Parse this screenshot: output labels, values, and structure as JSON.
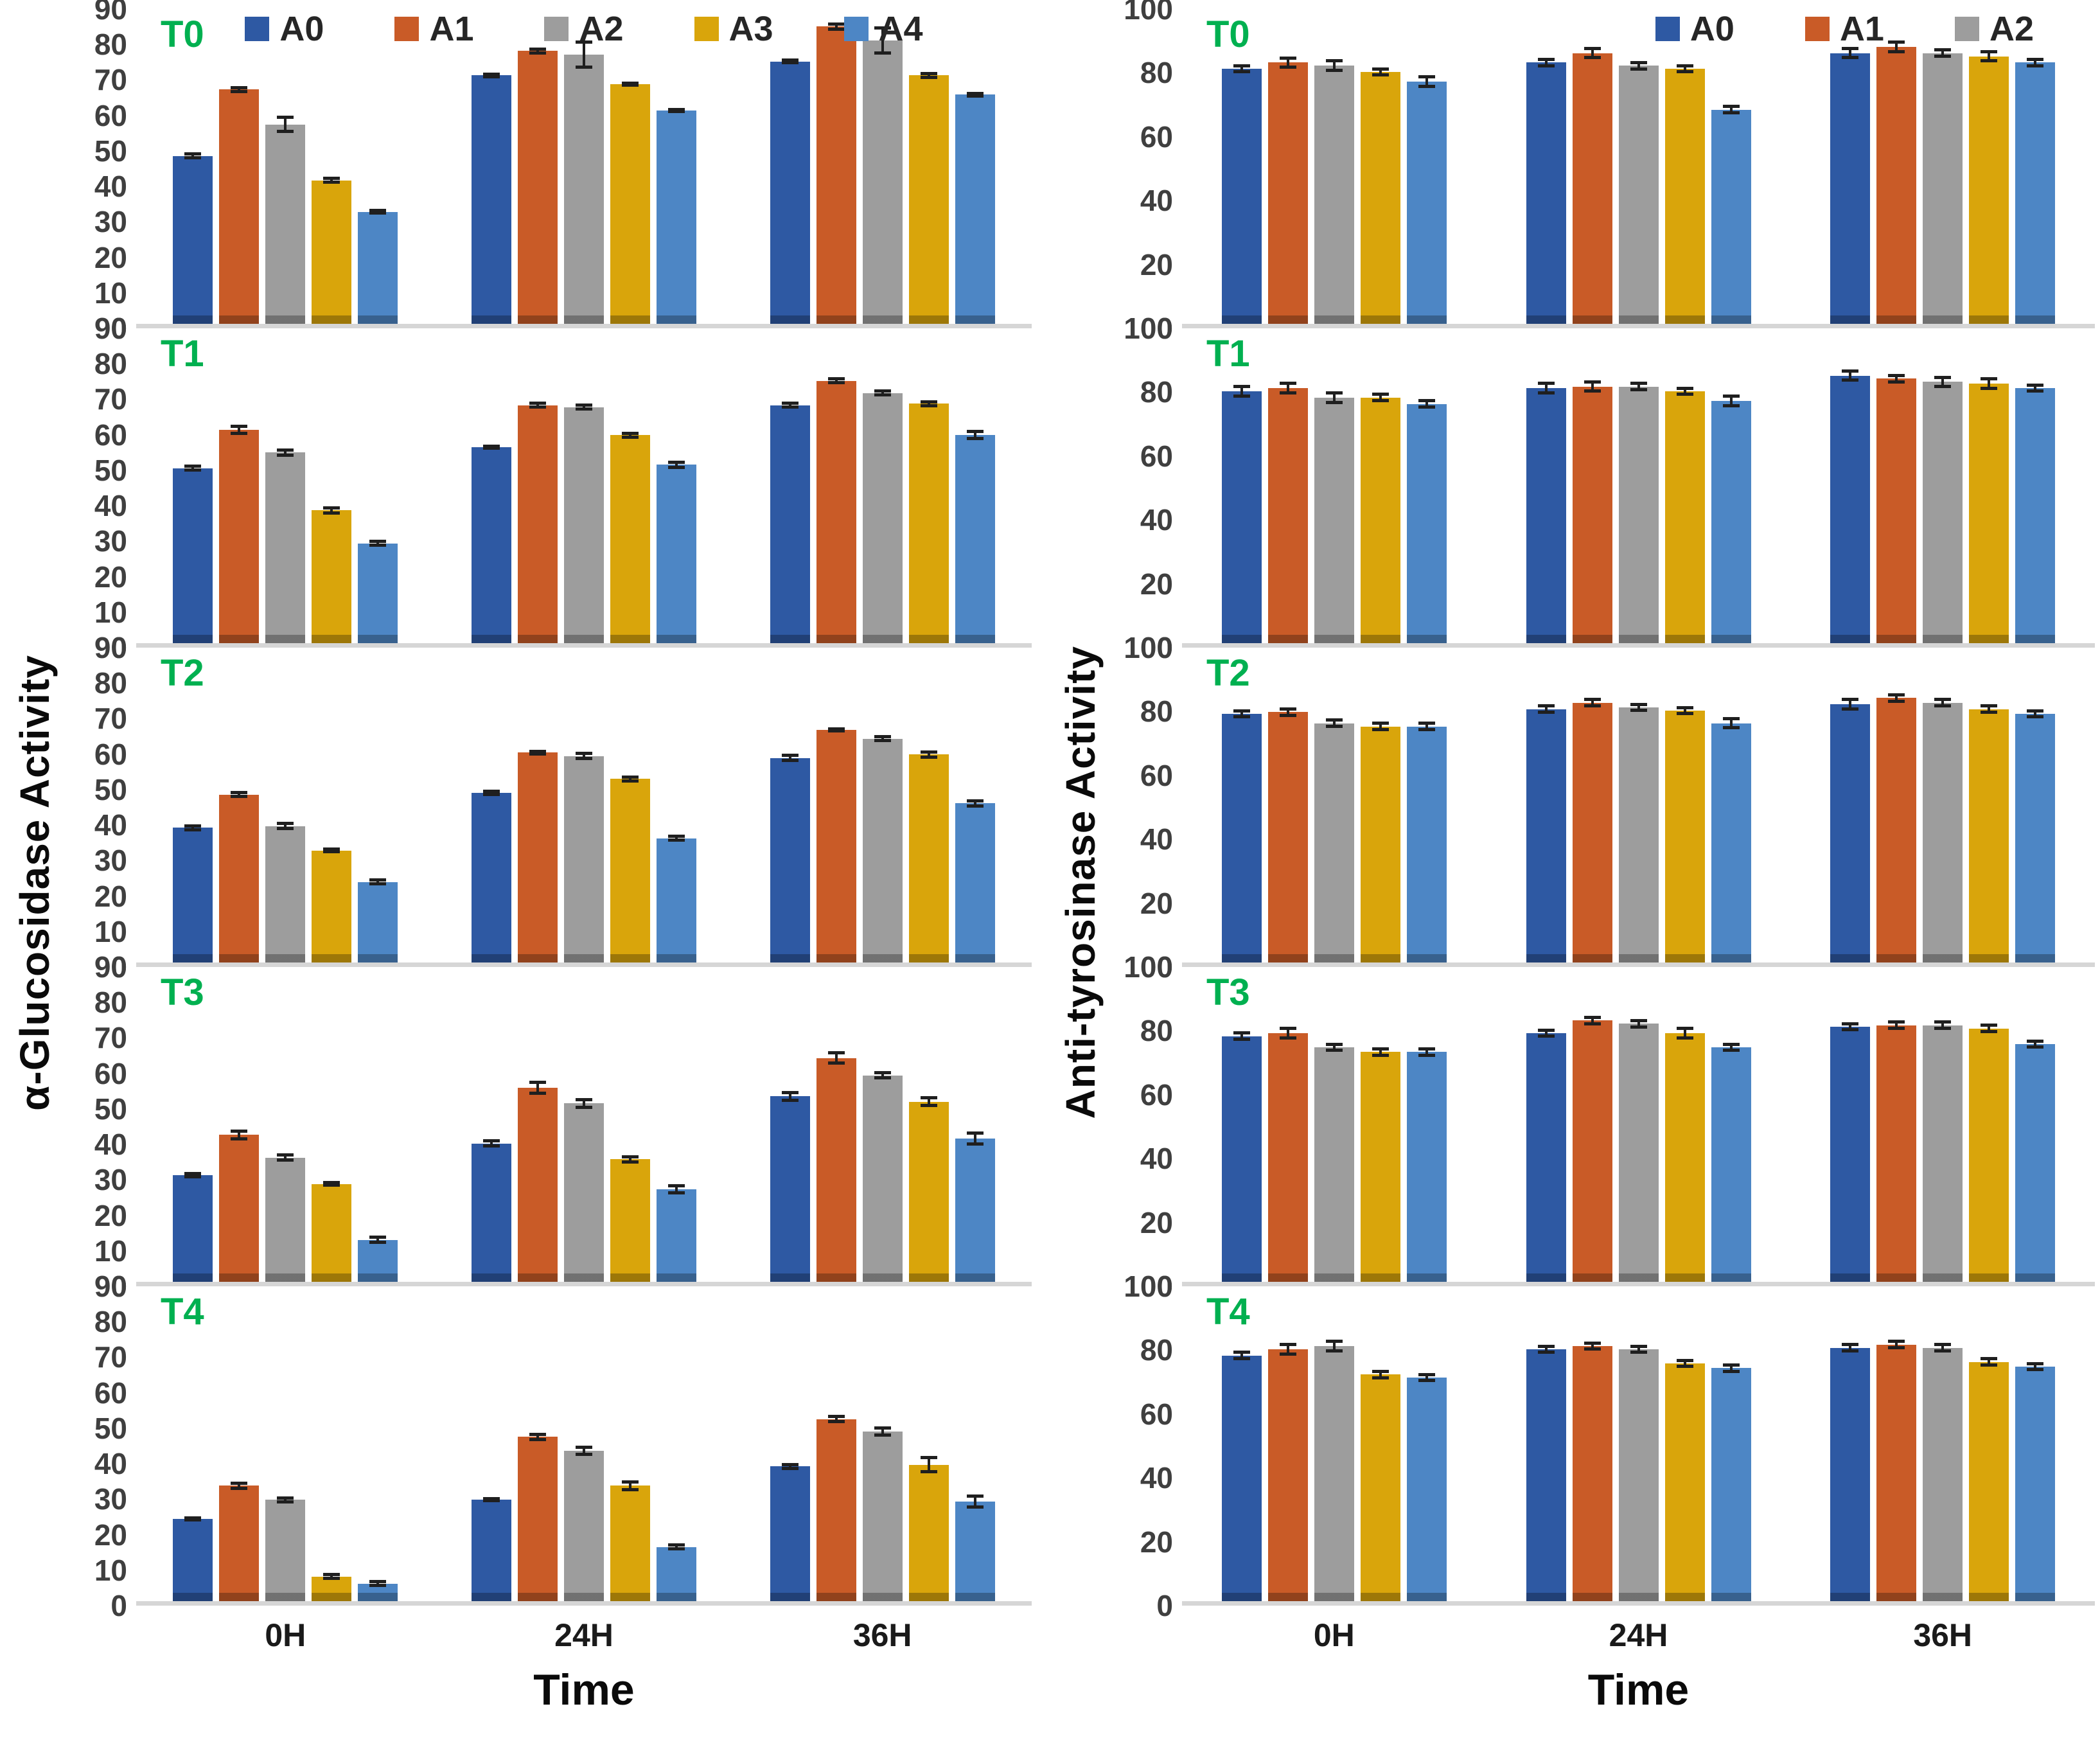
{
  "chart_data": {
    "type": "bar",
    "layout": "two columns of five stacked grouped-bar panels with error bars, shared x axis",
    "x_categories": [
      "0H",
      "24H",
      "36H"
    ],
    "series_labels": [
      "A0",
      "A1",
      "A2",
      "A3",
      "A4"
    ],
    "palette": {
      "A0": "#2E59A3",
      "A1": "#C95B27",
      "A2": "#9D9D9D",
      "A3": "#D9A50B",
      "A4": "#4D86C5"
    },
    "panel_label_color": "#00B050",
    "error_bar_color": "#1F1F1F",
    "baseline_color": "#D6D6D6",
    "grid": "off",
    "charts": [
      {
        "id": "alpha-glucosidase",
        "ylabel": "α-Glucosidase Activity",
        "xlabel": "Time",
        "ylim": [
          0,
          90
        ],
        "yticks": [
          90,
          80,
          70,
          60,
          50,
          40,
          30,
          20,
          10,
          0
        ],
        "legend": [
          "A0",
          "A1",
          "A2",
          "A3",
          "A4"
        ],
        "legend_align": "center",
        "panels": [
          {
            "label": "T0",
            "groups": [
              {
                "x": "0H",
                "values": [
                  48,
                  67,
                  57,
                  41,
                  32
                ],
                "errors": [
                  1,
                  1,
                  2.5,
                  1,
                  0.8
                ]
              },
              {
                "x": "24H",
                "values": [
                  71,
                  78,
                  77,
                  68.5,
                  61
                ],
                "errors": [
                  0.8,
                  1,
                  4,
                  0.8,
                  0.8
                ]
              },
              {
                "x": "36H",
                "values": [
                  75,
                  85,
                  81,
                  71,
                  65.5
                ],
                "errors": [
                  0.8,
                  1.2,
                  4,
                  1,
                  0.8
                ]
              }
            ]
          },
          {
            "label": "T1",
            "groups": [
              {
                "x": "0H",
                "values": [
                  50,
                  61,
                  54.5,
                  38,
                  28.5
                ],
                "errors": [
                  1,
                  1.5,
                  1.2,
                  1.2,
                  1
                ]
              },
              {
                "x": "24H",
                "values": [
                  56,
                  68,
                  67.5,
                  59.5,
                  51
                ],
                "errors": [
                  0.8,
                  1,
                  1,
                  1,
                  1.2
                ]
              },
              {
                "x": "36H",
                "values": [
                  68,
                  75,
                  71.5,
                  68.5,
                  59.5
                ],
                "errors": [
                  1,
                  1,
                  1,
                  1,
                  1.5
                ]
              }
            ]
          },
          {
            "label": "T2",
            "groups": [
              {
                "x": "0H",
                "values": [
                  38.5,
                  48,
                  39,
                  32,
                  23
                ],
                "errors": [
                  1,
                  1,
                  1.2,
                  0.8,
                  1
                ]
              },
              {
                "x": "24H",
                "values": [
                  48.5,
                  60,
                  59,
                  52.5,
                  35.5
                ],
                "errors": [
                  1,
                  0.8,
                  1.2,
                  1,
                  1
                ]
              },
              {
                "x": "36H",
                "values": [
                  58.5,
                  66.5,
                  64,
                  59.5,
                  45.5
                ],
                "errors": [
                  1.2,
                  0.8,
                  1,
                  1.2,
                  1.2
                ]
              }
            ]
          },
          {
            "label": "T3",
            "groups": [
              {
                "x": "0H",
                "values": [
                  30.5,
                  42,
                  35.5,
                  28,
                  12
                ],
                "errors": [
                  1,
                  1.5,
                  1.2,
                  0.8,
                  1.2
                ]
              },
              {
                "x": "24H",
                "values": [
                  39.5,
                  55.5,
                  51,
                  35,
                  26.5
                ],
                "errors": [
                  1.2,
                  2,
                  1.5,
                  1.2,
                  1.5
                ]
              },
              {
                "x": "36H",
                "values": [
                  53,
                  64,
                  59,
                  51.5,
                  41
                ],
                "errors": [
                  1.5,
                  2,
                  1.2,
                  1.5,
                  2
                ]
              }
            ]
          },
          {
            "label": "T4",
            "groups": [
              {
                "x": "0H",
                "values": [
                  23.5,
                  33,
                  29,
                  7,
                  5
                ],
                "errors": [
                  0.8,
                  1.2,
                  1,
                  1,
                  1
                ]
              },
              {
                "x": "24H",
                "values": [
                  29,
                  47,
                  43,
                  33,
                  15.5
                ],
                "errors": [
                  0.8,
                  1.2,
                  1.5,
                  1.5,
                  1
                ]
              },
              {
                "x": "36H",
                "values": [
                  38.5,
                  52,
                  48.5,
                  39,
                  28.5
                ],
                "errors": [
                  1,
                  1.2,
                  1.5,
                  2.5,
                  2
                ]
              }
            ]
          }
        ]
      },
      {
        "id": "anti-tyrosinase",
        "ylabel": "Anti-tyrosinase Activity",
        "xlabel": "Time",
        "ylim": [
          0,
          100
        ],
        "yticks": [
          100,
          80,
          60,
          40,
          20,
          0
        ],
        "legend": [
          "A0",
          "A1",
          "A2"
        ],
        "legend_align": "right",
        "panels": [
          {
            "label": "T0",
            "groups": [
              {
                "x": "0H",
                "values": [
                  81,
                  83,
                  82,
                  80,
                  77
                ],
                "errors": [
                  1.5,
                  2,
                  2,
                  1.5,
                  2
                ]
              },
              {
                "x": "24H",
                "values": [
                  83,
                  86,
                  82,
                  81,
                  68
                ],
                "errors": [
                  1.5,
                  2,
                  1.5,
                  1.5,
                  1.5
                ]
              },
              {
                "x": "36H",
                "values": [
                  86,
                  88,
                  86,
                  85,
                  83
                ],
                "errors": [
                  2,
                  2,
                  1.5,
                  2,
                  1.5
                ]
              }
            ]
          },
          {
            "label": "T1",
            "groups": [
              {
                "x": "0H",
                "values": [
                  80,
                  81,
                  78,
                  78,
                  76
                ],
                "errors": [
                  2,
                  2,
                  2,
                  1.5,
                  1.5
                ]
              },
              {
                "x": "24H",
                "values": [
                  81,
                  81.5,
                  81.5,
                  80,
                  77
                ],
                "errors": [
                  2,
                  2,
                  1.5,
                  1.5,
                  2
                ]
              },
              {
                "x": "36H",
                "values": [
                  85,
                  84,
                  83,
                  82.5,
                  81
                ],
                "errors": [
                  2,
                  1.5,
                  2,
                  2,
                  1.5
                ]
              }
            ]
          },
          {
            "label": "T2",
            "groups": [
              {
                "x": "0H",
                "values": [
                  79,
                  79.5,
                  76,
                  75,
                  75
                ],
                "errors": [
                  1.5,
                  1.5,
                  1.5,
                  1.5,
                  1.5
                ]
              },
              {
                "x": "24H",
                "values": [
                  80.5,
                  82.5,
                  81,
                  80,
                  76
                ],
                "errors": [
                  1.5,
                  1.5,
                  1.5,
                  1.5,
                  2
                ]
              },
              {
                "x": "36H",
                "values": [
                  82,
                  84,
                  82.5,
                  80.5,
                  79
                ],
                "errors": [
                  2,
                  1.5,
                  1.5,
                  1.5,
                  1.5
                ]
              }
            ]
          },
          {
            "label": "T3",
            "groups": [
              {
                "x": "0H",
                "values": [
                  78,
                  79,
                  74.5,
                  73,
                  73
                ],
                "errors": [
                  1.5,
                  2,
                  1.5,
                  1.5,
                  1.5
                ]
              },
              {
                "x": "24H",
                "values": [
                  79,
                  83,
                  82,
                  79,
                  74.5
                ],
                "errors": [
                  1.5,
                  1.5,
                  1.5,
                  2,
                  1.5
                ]
              },
              {
                "x": "36H",
                "values": [
                  81,
                  81.5,
                  81.5,
                  80.5,
                  75.5
                ],
                "errors": [
                  1.5,
                  1.5,
                  1.5,
                  1.5,
                  1.5
                ]
              }
            ]
          },
          {
            "label": "T4",
            "groups": [
              {
                "x": "0H",
                "values": [
                  78,
                  80,
                  81,
                  72,
                  71
                ],
                "errors": [
                  1.5,
                  2,
                  2,
                  1.5,
                  1.5
                ]
              },
              {
                "x": "24H",
                "values": [
                  80,
                  81,
                  80,
                  75.5,
                  74
                ],
                "errors": [
                  1.5,
                  1.5,
                  1.5,
                  1.5,
                  1.5
                ]
              },
              {
                "x": "36H",
                "values": [
                  80.5,
                  81.5,
                  80.5,
                  76,
                  74.5
                ],
                "errors": [
                  1.5,
                  1.5,
                  1.5,
                  1.5,
                  1.5
                ]
              }
            ]
          }
        ]
      }
    ]
  }
}
